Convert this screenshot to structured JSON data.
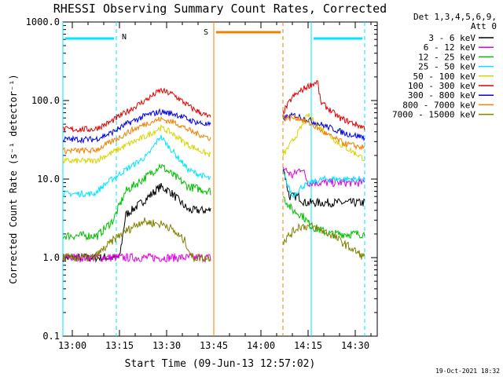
{
  "chart_data": {
    "type": "line",
    "title": "RHESSI Observing Summary Count Rates, Corrected",
    "xlabel": "Start Time (09-Jun-13 12:57:02)",
    "ylabel": "Corrected Count Rate (s⁻¹ detector⁻¹)",
    "y_scale": "log",
    "ylim": [
      0.1,
      1000
    ],
    "xlim": [
      "12:57",
      "14:37"
    ],
    "x_ticks": [
      "13:00",
      "13:15",
      "13:30",
      "13:45",
      "14:00",
      "14:15",
      "14:30"
    ],
    "y_ticks": [
      "0.1",
      "1.0",
      "10.0",
      "100.0",
      "1000.0"
    ],
    "legend_header": [
      "Det 1,3,4,5,6,9,",
      "Att 0"
    ],
    "legend_position": "right",
    "timestamp": "19-Oct-2021 18:32",
    "markers": {
      "night_label": "N",
      "saa_label": "S",
      "night_intervals": [
        [
          "12:57",
          "13:14"
        ],
        [
          "14:16",
          "14:33"
        ]
      ],
      "saa_interval": [
        "13:45",
        "14:07"
      ],
      "night_color": "#00e5ff",
      "saa_color": "#f08000"
    },
    "gap": [
      "13:45",
      "14:07"
    ],
    "series": [
      {
        "name": "3 - 6 keV",
        "color": "#000000",
        "pre": [
          [
            "12:57",
            1.0
          ],
          [
            "13:15",
            1.0
          ],
          [
            "13:17",
            3.5
          ],
          [
            "13:22",
            5
          ],
          [
            "13:28",
            8
          ],
          [
            "13:31",
            7
          ],
          [
            "13:37",
            4
          ],
          [
            "13:44",
            4
          ]
        ],
        "post": [
          [
            "14:07",
            15
          ],
          [
            "14:09",
            6
          ],
          [
            "14:12",
            6
          ],
          [
            "14:14",
            5
          ]
        ]
      },
      {
        "name": "6 - 12 keV",
        "color": "#e000e0",
        "pre": [
          [
            "12:57",
            1.0
          ]
        ],
        "post": [
          [
            "14:07",
            14
          ],
          [
            "14:10",
            11
          ],
          [
            "14:13",
            14
          ],
          [
            "14:15",
            9
          ]
        ]
      },
      {
        "name": "12 - 25 keV",
        "color": "#00c000",
        "pre": [
          [
            "12:57",
            1.9
          ],
          [
            "13:08",
            1.9
          ],
          [
            "13:13",
            3
          ],
          [
            "13:17",
            7
          ],
          [
            "13:24",
            11
          ],
          [
            "13:28",
            15
          ],
          [
            "13:31",
            12
          ],
          [
            "13:37",
            8
          ],
          [
            "13:44",
            7
          ]
        ],
        "post": [
          [
            "14:07",
            6
          ],
          [
            "14:10",
            4
          ],
          [
            "14:13",
            3.5
          ],
          [
            "14:16",
            2.5
          ],
          [
            "14:22",
            2
          ],
          [
            "14:30",
            2
          ],
          [
            "14:33",
            2
          ]
        ]
      },
      {
        "name": "25 - 50 keV",
        "color": "#00e5ff",
        "pre": [
          [
            "12:57",
            6.5
          ],
          [
            "13:07",
            6.5
          ],
          [
            "13:11",
            9
          ],
          [
            "13:18",
            14
          ],
          [
            "13:24",
            20
          ],
          [
            "13:28",
            35
          ],
          [
            "13:31",
            25
          ],
          [
            "13:37",
            13
          ],
          [
            "13:44",
            10
          ]
        ],
        "post": [
          [
            "14:07",
            12
          ],
          [
            "14:10",
            6
          ],
          [
            "14:13",
            8
          ],
          [
            "14:16",
            9
          ],
          [
            "14:20",
            10
          ],
          [
            "14:25",
            10
          ],
          [
            "14:33",
            10
          ]
        ]
      },
      {
        "name": "50 - 100 keV",
        "color": "#d6d600",
        "pre": [
          [
            "12:57",
            17
          ],
          [
            "13:07",
            17
          ],
          [
            "13:12",
            21
          ],
          [
            "13:18",
            28
          ],
          [
            "13:24",
            36
          ],
          [
            "13:28",
            45
          ],
          [
            "13:31",
            40
          ],
          [
            "13:37",
            27
          ],
          [
            "13:44",
            20
          ]
        ],
        "post": [
          [
            "14:07",
            20
          ],
          [
            "14:12",
            40
          ],
          [
            "14:15",
            65
          ],
          [
            "14:19",
            45
          ],
          [
            "14:25",
            28
          ],
          [
            "14:33",
            18
          ]
        ]
      },
      {
        "name": "100 - 300 keV",
        "color": "#e00000",
        "pre": [
          [
            "12:57",
            43
          ],
          [
            "13:07",
            43
          ],
          [
            "13:12",
            53
          ],
          [
            "13:18",
            75
          ],
          [
            "13:24",
            105
          ],
          [
            "13:28",
            135
          ],
          [
            "13:32",
            120
          ],
          [
            "13:38",
            80
          ],
          [
            "13:44",
            60
          ]
        ],
        "post": [
          [
            "14:07",
            70
          ],
          [
            "14:10",
            110
          ],
          [
            "14:14",
            145
          ],
          [
            "14:18",
            175
          ],
          [
            "14:19",
            95
          ],
          [
            "14:25",
            60
          ],
          [
            "14:33",
            45
          ]
        ]
      },
      {
        "name": "300 - 800 keV",
        "color": "#0000e0",
        "pre": [
          [
            "12:57",
            32
          ],
          [
            "13:07",
            32
          ],
          [
            "13:12",
            38
          ],
          [
            "13:18",
            52
          ],
          [
            "13:24",
            66
          ],
          [
            "13:28",
            72
          ],
          [
            "13:33",
            67
          ],
          [
            "13:38",
            55
          ],
          [
            "13:44",
            48
          ]
        ],
        "post": [
          [
            "14:07",
            60
          ],
          [
            "14:11",
            65
          ],
          [
            "14:16",
            55
          ],
          [
            "14:22",
            45
          ],
          [
            "14:27",
            38
          ],
          [
            "14:33",
            34
          ]
        ]
      },
      {
        "name": "800 - 7000 keV",
        "color": "#f08000",
        "pre": [
          [
            "12:57",
            23
          ],
          [
            "13:07",
            23
          ],
          [
            "13:12",
            29
          ],
          [
            "13:18",
            40
          ],
          [
            "13:24",
            52
          ],
          [
            "13:28",
            58
          ],
          [
            "13:33",
            52
          ],
          [
            "13:38",
            40
          ],
          [
            "13:44",
            33
          ]
        ],
        "post": [
          [
            "14:07",
            60
          ],
          [
            "14:12",
            60
          ],
          [
            "14:16",
            50
          ],
          [
            "14:22",
            35
          ],
          [
            "14:27",
            28
          ],
          [
            "14:33",
            25
          ]
        ]
      },
      {
        "name": "7000 - 15000 keV",
        "color": "#808000",
        "pre": [
          [
            "12:57",
            1.0
          ],
          [
            "13:07",
            1.0
          ],
          [
            "13:14",
            1.8
          ],
          [
            "13:18",
            2.3
          ],
          [
            "13:22",
            2.9
          ],
          [
            "13:30",
            2.6
          ],
          [
            "13:36",
            1.6
          ],
          [
            "13:38",
            1.0
          ],
          [
            "13:44",
            1.0
          ]
        ],
        "post": [
          [
            "14:07",
            1.6
          ],
          [
            "14:12",
            2.5
          ],
          [
            "14:16",
            2.5
          ],
          [
            "14:22",
            2.0
          ],
          [
            "14:33",
            1.0
          ]
        ]
      }
    ]
  }
}
